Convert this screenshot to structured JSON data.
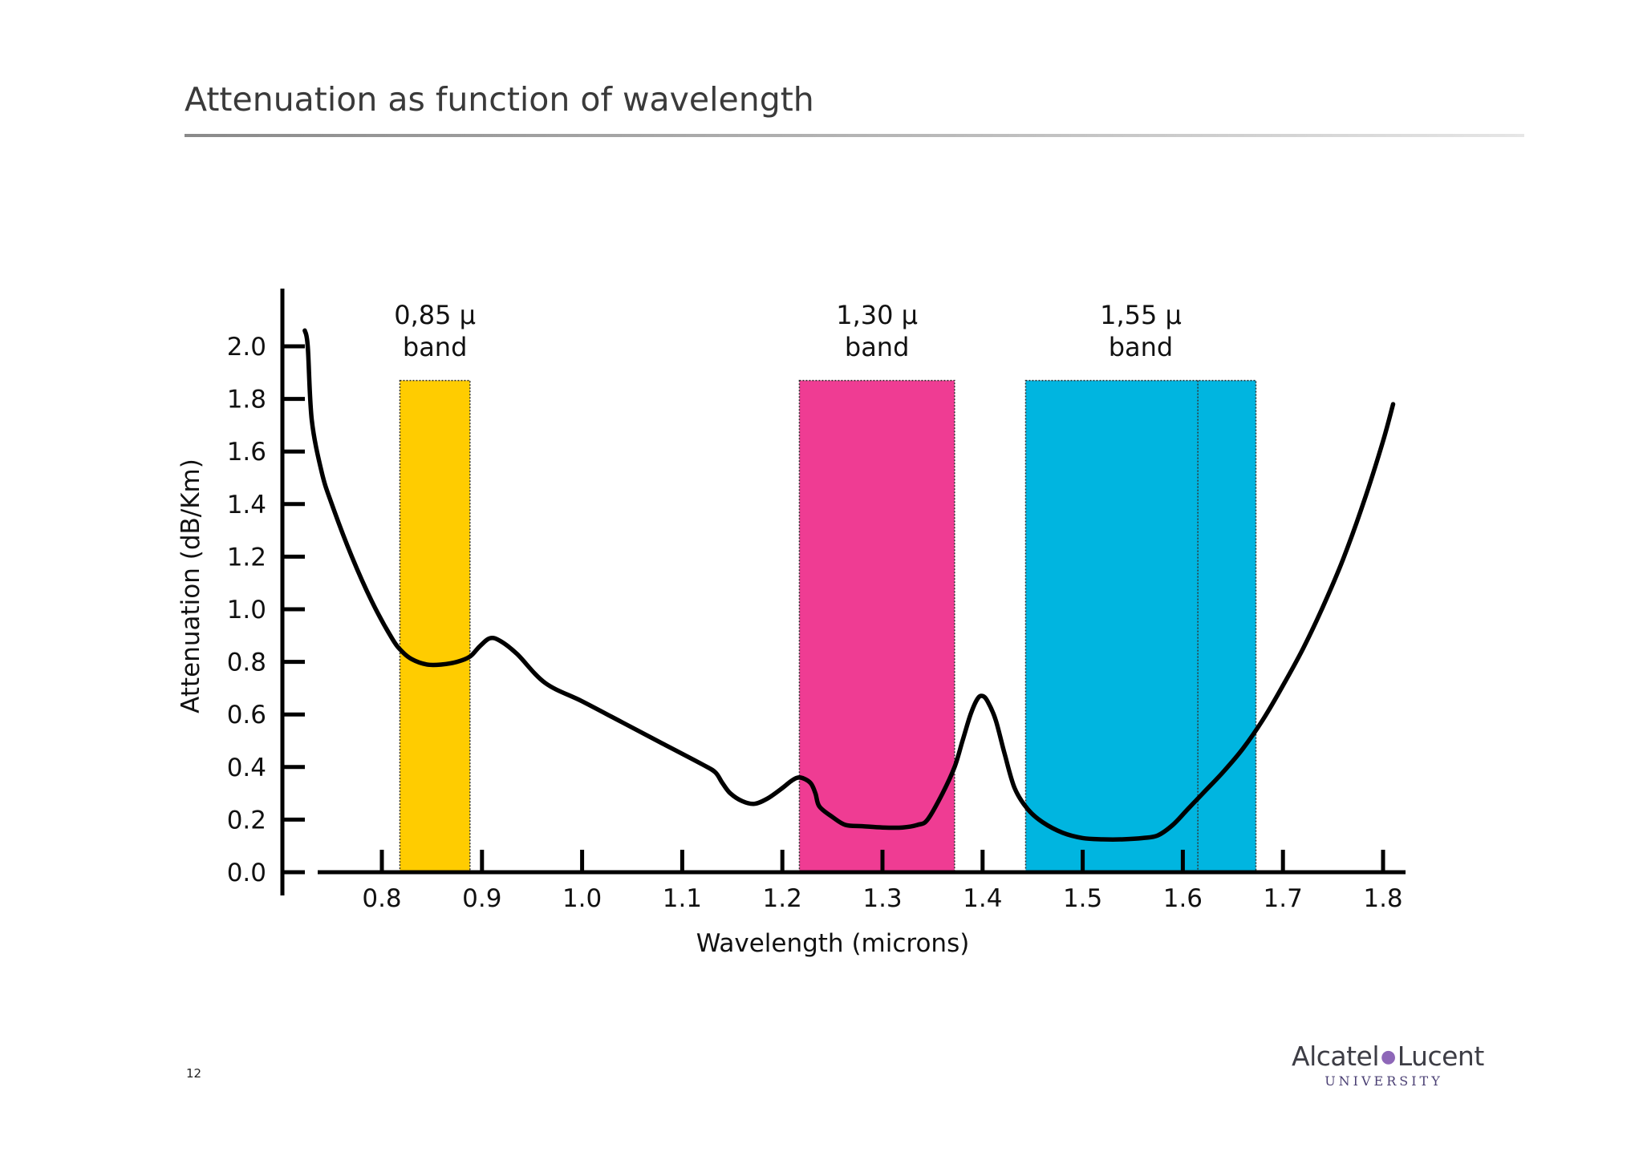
{
  "page": {
    "title": "Attenuation as function of wavelength",
    "page_number": "12"
  },
  "logo": {
    "brand_left": "Alcatel",
    "brand_right": "Lucent",
    "subtitle": "UNIVERSITY"
  },
  "chart_data": {
    "type": "line",
    "xlabel": "Wavelength (microns)",
    "ylabel": "Attenuation (dB/Km)",
    "xlim": [
      0.7,
      1.82
    ],
    "ylim": [
      0.0,
      2.2
    ],
    "x_ticks": [
      0.8,
      0.9,
      1.0,
      1.1,
      1.2,
      1.3,
      1.4,
      1.5,
      1.6,
      1.7,
      1.8
    ],
    "x_tick_labels": [
      "0.8",
      "0.9",
      "1.0",
      "1.1",
      "1.2",
      "1.3",
      "1.4",
      "1.5",
      "1.6",
      "1.7",
      "1.8"
    ],
    "y_ticks": [
      0.0,
      0.2,
      0.4,
      0.6,
      0.8,
      1.0,
      1.2,
      1.4,
      1.6,
      1.8,
      2.0
    ],
    "y_tick_labels": [
      "0.0",
      "0.2",
      "0.4",
      "0.6",
      "0.8",
      "1.0",
      "1.2",
      "1.4",
      "1.6",
      "1.8",
      "2.0"
    ],
    "grid": false,
    "bands": [
      {
        "label_line1": "0,85 µ",
        "label_line2": "band",
        "x_start": 0.818,
        "x_end": 0.888,
        "top": 1.87,
        "color": "#ffcc00"
      },
      {
        "label_line1": "1,30 µ",
        "label_line2": "band",
        "x_start": 1.217,
        "x_end": 1.372,
        "top": 1.87,
        "color": "#ef3c93"
      },
      {
        "label_line1": "1,55 µ",
        "label_line2": "band",
        "x_start": 1.443,
        "x_end": 1.673,
        "top": 1.87,
        "color": "#00b5e0",
        "divider_x": 1.615
      }
    ],
    "series": [
      {
        "x": [
          0.723,
          0.726,
          0.73,
          0.74,
          0.75,
          0.77,
          0.79,
          0.81,
          0.82,
          0.83,
          0.845,
          0.86,
          0.875,
          0.888,
          0.898,
          0.908,
          0.918,
          0.935,
          0.963,
          1.0,
          1.04,
          1.08,
          1.12,
          1.133,
          1.14,
          1.148,
          1.16,
          1.172,
          1.185,
          1.2,
          1.21,
          1.218,
          1.228,
          1.233,
          1.237,
          1.25,
          1.263,
          1.28,
          1.3,
          1.32,
          1.335,
          1.345,
          1.36,
          1.372,
          1.38,
          1.388,
          1.395,
          1.4,
          1.405,
          1.413,
          1.422,
          1.432,
          1.445,
          1.46,
          1.48,
          1.5,
          1.52,
          1.54,
          1.56,
          1.575,
          1.59,
          1.605,
          1.62,
          1.64,
          1.66,
          1.68,
          1.7,
          1.72,
          1.74,
          1.76,
          1.78,
          1.8,
          1.81
        ],
        "y": [
          2.06,
          2.0,
          1.72,
          1.52,
          1.4,
          1.2,
          1.03,
          0.89,
          0.84,
          0.81,
          0.79,
          0.79,
          0.8,
          0.82,
          0.86,
          0.89,
          0.88,
          0.83,
          0.72,
          0.65,
          0.57,
          0.49,
          0.41,
          0.38,
          0.34,
          0.3,
          0.27,
          0.26,
          0.28,
          0.32,
          0.35,
          0.36,
          0.34,
          0.3,
          0.25,
          0.21,
          0.18,
          0.175,
          0.17,
          0.17,
          0.18,
          0.2,
          0.3,
          0.4,
          0.5,
          0.6,
          0.66,
          0.67,
          0.65,
          0.58,
          0.45,
          0.32,
          0.24,
          0.19,
          0.15,
          0.13,
          0.125,
          0.125,
          0.13,
          0.14,
          0.18,
          0.24,
          0.3,
          0.38,
          0.47,
          0.58,
          0.71,
          0.85,
          1.01,
          1.19,
          1.4,
          1.64,
          1.78
        ]
      }
    ]
  }
}
